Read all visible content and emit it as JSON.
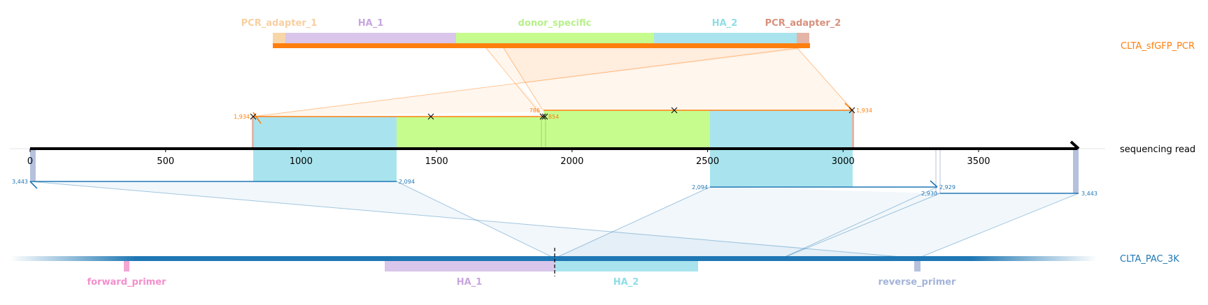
{
  "references": {
    "top": {
      "name": "CLTA_sfGFP_PCR",
      "color": "#ff7f0e",
      "features": [
        {
          "name": "PCR_adapter_1",
          "color": "#f7d6a8",
          "label_color": "#f9cfa0"
        },
        {
          "name": "HA_1",
          "color": "#d9c6ea",
          "label_color": "#c7a6e0"
        },
        {
          "name": "donor_specific",
          "color": "#c6fb8e",
          "label_color": "#b7f08a"
        },
        {
          "name": "HA_2",
          "color": "#a9e4ee",
          "label_color": "#8fdde6"
        },
        {
          "name": "PCR_adapter_2",
          "color": "#e4b4a6",
          "label_color": "#d8907c"
        }
      ]
    },
    "read": {
      "name": "sequencing read",
      "color": "#000000",
      "ticks": [
        "0",
        "500",
        "1000",
        "1500",
        "2000",
        "2500",
        "3000",
        "3500"
      ]
    },
    "bottom": {
      "name": "CLTA_PAC_3K",
      "color": "#1f77b4",
      "features": [
        {
          "name": "forward_primer",
          "color": "#f4a6d4",
          "label_color": "#f48fcc"
        },
        {
          "name": "HA_1",
          "color": "#d9c6ea",
          "label_color": "#c7a6e0"
        },
        {
          "name": "HA_2",
          "color": "#a9e4ee",
          "label_color": "#8fdde6"
        },
        {
          "name": "reverse_primer",
          "color": "#b5c1dd",
          "label_color": "#a3b3d8"
        }
      ]
    }
  },
  "alignment_labels": {
    "top_left_start": "1,934",
    "top_mid_a": "786",
    "top_mid_b": "854",
    "top_right_end": "1,934",
    "bottom_left_start": "3,443",
    "bottom_left_end": "2,094",
    "bottom_right_a_start": "2,094",
    "bottom_right_a_end": "2,929",
    "bottom_right_b_start": "2,930",
    "bottom_right_b_end": "3,443"
  }
}
